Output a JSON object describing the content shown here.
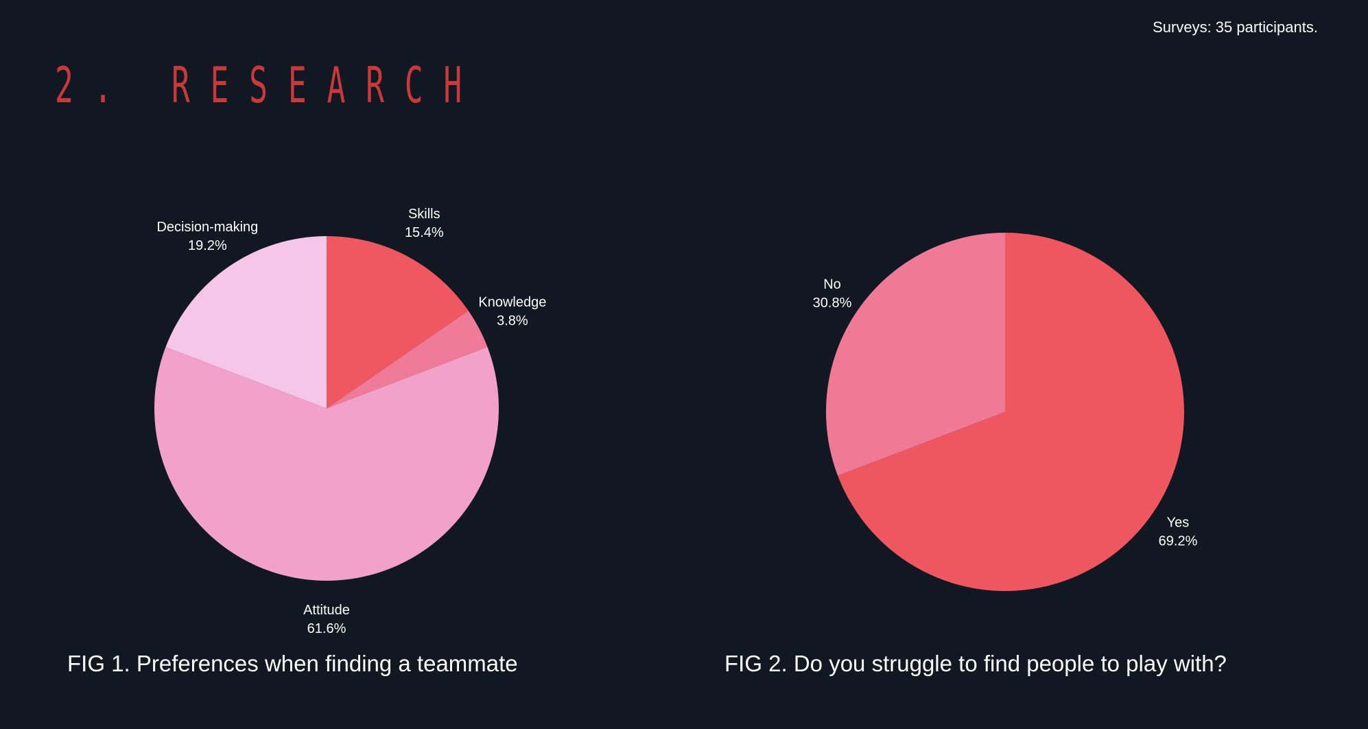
{
  "note": "Surveys: 35 participants.",
  "section": {
    "title": "2. RESEARCH",
    "color": "#c9393c"
  },
  "chart_data": [
    {
      "type": "pie",
      "caption": "FIG 1. Preferences when finding a teammate",
      "start": "top",
      "direction": "clockwise",
      "slices": [
        {
          "name": "Skills",
          "value": 15.4,
          "label": "15.4%",
          "color": "#ef5860"
        },
        {
          "name": "Knowledge",
          "value": 3.8,
          "label": "3.8%",
          "color": "#f07b98"
        },
        {
          "name": "Attitude",
          "value": 61.6,
          "label": "61.6%",
          "color": "#f2a2c8"
        },
        {
          "name": "Decision-making",
          "value": 19.2,
          "label": "19.2%",
          "color": "#f6c6e8"
        }
      ]
    },
    {
      "type": "pie",
      "caption": "FIG 2. Do you struggle to find people to play with?",
      "start": "top",
      "direction": "clockwise",
      "slices": [
        {
          "name": "Yes",
          "value": 69.2,
          "label": "69.2%",
          "color": "#ee575f"
        },
        {
          "name": "No",
          "value": 30.8,
          "label": "30.8%",
          "color": "#f07a96"
        }
      ]
    }
  ]
}
